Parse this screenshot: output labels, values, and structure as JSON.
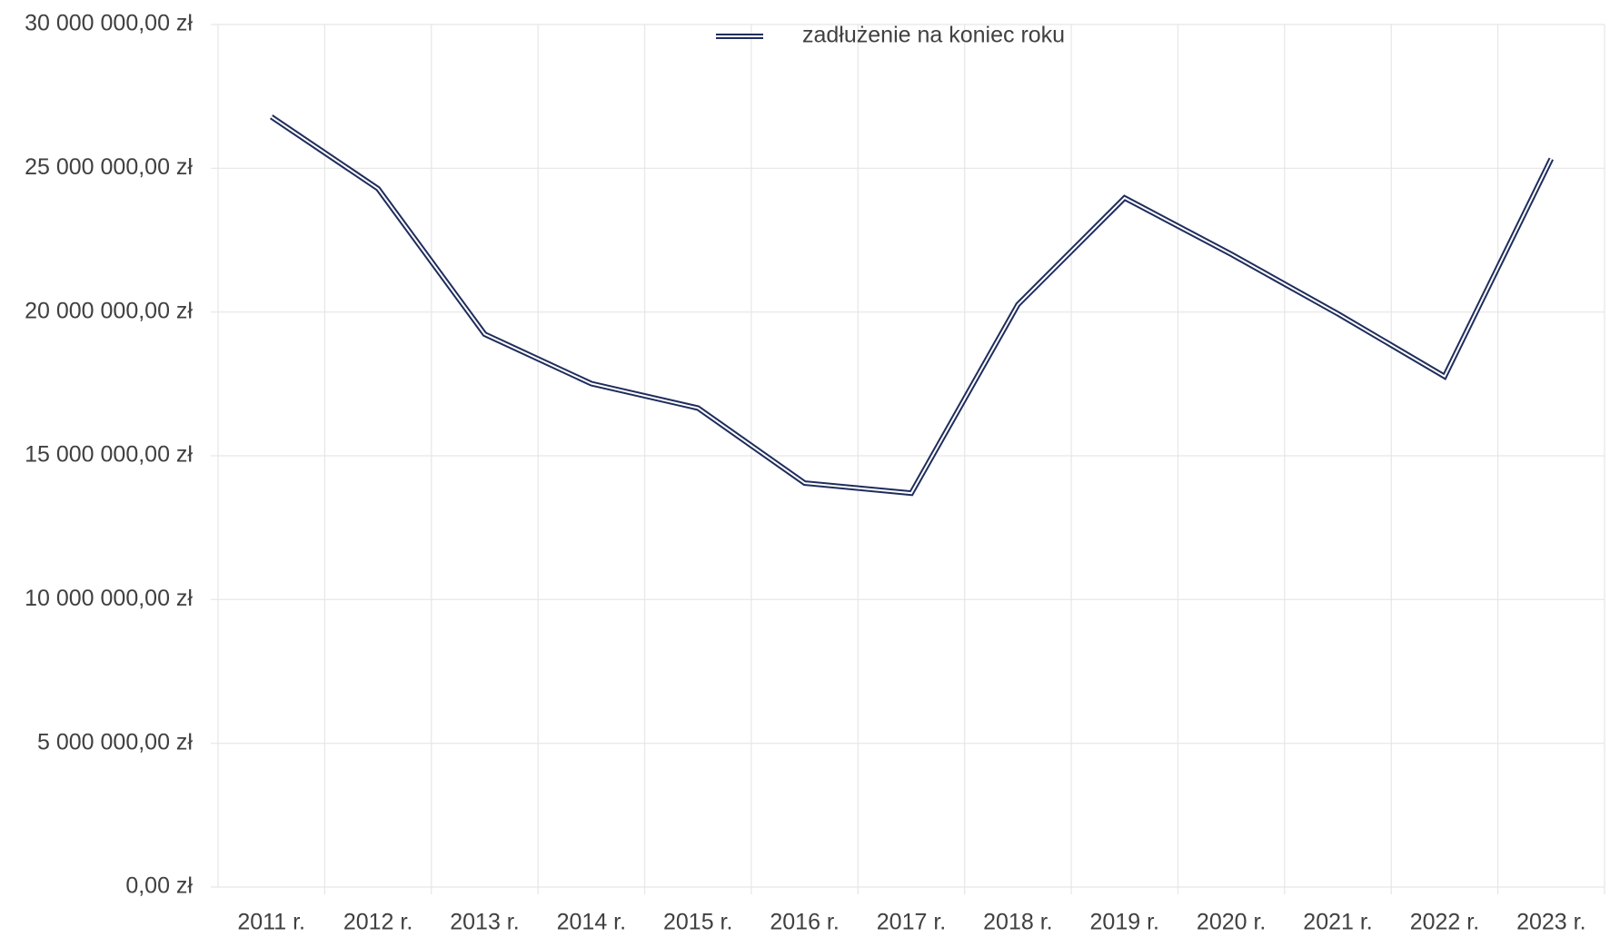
{
  "chart_data": {
    "type": "line",
    "legend_position": "top",
    "grid": true,
    "categories": [
      "2011 r.",
      "2012 r.",
      "2013 r.",
      "2014 r.",
      "2015 r.",
      "2016 r.",
      "2017 r.",
      "2018 r.",
      "2019 r.",
      "2020 r.",
      "2021 r.",
      "2022 r.",
      "2023 r."
    ],
    "series": [
      {
        "name": "zadłużenie na koniec roku",
        "color": "#1f2d5c",
        "values": [
          26790000,
          24290000,
          19230000,
          17510000,
          16660000,
          14050000,
          13700000,
          20260000,
          23970000,
          22010000,
          19940000,
          17760000,
          25330000
        ]
      }
    ],
    "ylim": [
      0,
      30000000
    ],
    "yticks": [
      {
        "value": 0,
        "label": "0,00 zł"
      },
      {
        "value": 5000000,
        "label": "5 000 000,00 zł"
      },
      {
        "value": 10000000,
        "label": "10 000 000,00 zł"
      },
      {
        "value": 15000000,
        "label": "15 000 000,00 zł"
      },
      {
        "value": 20000000,
        "label": "20 000 000,00 zł"
      },
      {
        "value": 25000000,
        "label": "25 000 000,00 zł"
      },
      {
        "value": 30000000,
        "label": "30 000 000,00 zł"
      }
    ]
  }
}
